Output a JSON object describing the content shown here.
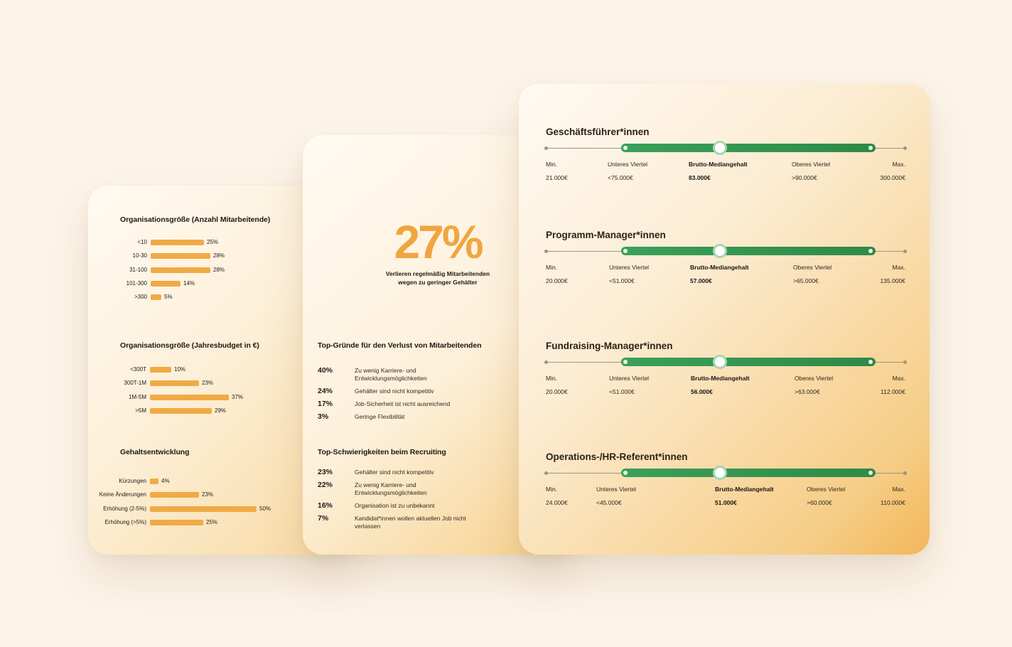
{
  "left_card": {
    "size_staff": {
      "title": "Organisationsgröße (Anzahl Mitarbeitende)",
      "items": [
        {
          "label": "<10",
          "value": 25,
          "text": "25%"
        },
        {
          "label": "10-30",
          "value": 28,
          "text": "28%"
        },
        {
          "label": "31-100",
          "value": 28,
          "text": "28%"
        },
        {
          "label": "101-300",
          "value": 14,
          "text": "14%"
        },
        {
          "label": ">300",
          "value": 5,
          "text": "5%"
        }
      ]
    },
    "size_budget": {
      "title": "Organisationsgröße (Jahresbudget in €)",
      "items": [
        {
          "label": "<300T",
          "value": 10,
          "text": "10%"
        },
        {
          "label": "300T-1M",
          "value": 23,
          "text": "23%"
        },
        {
          "label": "1M-5M",
          "value": 37,
          "text": "37%"
        },
        {
          "label": ">5M",
          "value": 29,
          "text": "29%"
        }
      ]
    },
    "salary_dev": {
      "title": "Gehaltsentwicklung",
      "items": [
        {
          "label": "Kürzungen",
          "value": 4,
          "text": "4%"
        },
        {
          "label": "Keine Änderungen",
          "value": 23,
          "text": "23%"
        },
        {
          "label": "Erhöhung (2-5%)",
          "value": 50,
          "text": "50%"
        },
        {
          "label": "Erhöhung (>5%)",
          "value": 25,
          "text": "25%"
        }
      ]
    }
  },
  "mid_card": {
    "big_stat": "27%",
    "big_line1": "Verlieren regelmäßig  Mitarbeitenden",
    "big_line2": "wegen zu geringer Gehälter",
    "loss_reasons": {
      "title": "Top-Gründe für den Verlust von Mitarbeitenden",
      "items": [
        {
          "pct": "40%",
          "text": "Zu wenig Karriere- und Entwicklungsmöglichkeiten"
        },
        {
          "pct": "24%",
          "text": "Gehälter sind nicht kompetitiv"
        },
        {
          "pct": "17%",
          "text": "Job-Sicherheit ist nicht ausreichend"
        },
        {
          "pct": "3%",
          "text": "Geringe Flexibilität"
        }
      ]
    },
    "recruiting": {
      "title": "Top-Schwierigkeiten beim Recruiting",
      "items": [
        {
          "pct": "23%",
          "text": "Gehälter sind nicht kompetitiv"
        },
        {
          "pct": "22%",
          "text": "Zu wenig Karriere- und Entwicklungsmöglichkeiten"
        },
        {
          "pct": "16%",
          "text": "Organisation ist zu unbekannt"
        },
        {
          "pct": "7%",
          "text": "Kandidat*innen wollen aktuellen Job nicht verlassen"
        }
      ]
    }
  },
  "right_card": {
    "headers": {
      "min": "Min.",
      "q1": "Unteres Viertel",
      "median": "Brutto-Mediangehalt",
      "q3": "Oberes Viertel",
      "max": "Max."
    },
    "roles": [
      {
        "title": "Geschäftsführer*innen",
        "min": "21.000€",
        "q1": "<75.000€",
        "median": "83.000€",
        "q3": ">90.000€",
        "max": "300.000€"
      },
      {
        "title": "Programm-Manager*innen",
        "min": "20.000€",
        "q1": "<51.000€",
        "median": "57.000€",
        "q3": ">65.000€",
        "max": "135.000€"
      },
      {
        "title": "Fundraising-Manager*innen",
        "min": "20.000€",
        "q1": "<51.000€",
        "median": "56.000€",
        "q3": ">63.000€",
        "max": "112.000€"
      },
      {
        "title": "Operations-/HR-Referent*innen",
        "min": "24.000€",
        "q1": "<45.000€",
        "median": "51.000€",
        "q3": ">60.000€",
        "max": "110.000€"
      }
    ]
  },
  "chart_data": [
    {
      "type": "bar",
      "title": "Organisationsgröße (Anzahl Mitarbeitende)",
      "categories": [
        "<10",
        "10-30",
        "31-100",
        "101-300",
        ">300"
      ],
      "values": [
        25,
        28,
        28,
        14,
        5
      ]
    },
    {
      "type": "bar",
      "title": "Organisationsgröße (Jahresbudget in €)",
      "categories": [
        "<300T",
        "300T-1M",
        "1M-5M",
        ">5M"
      ],
      "values": [
        10,
        23,
        37,
        29
      ]
    },
    {
      "type": "bar",
      "title": "Gehaltsentwicklung",
      "categories": [
        "Kürzungen",
        "Keine Änderungen",
        "Erhöhung (2-5%)",
        "Erhöhung (>5%)"
      ],
      "values": [
        4,
        23,
        50,
        25
      ]
    }
  ],
  "colors": {
    "bar": "#f0aa45",
    "green": "#2f9a4f",
    "accent": "#f0a640"
  }
}
